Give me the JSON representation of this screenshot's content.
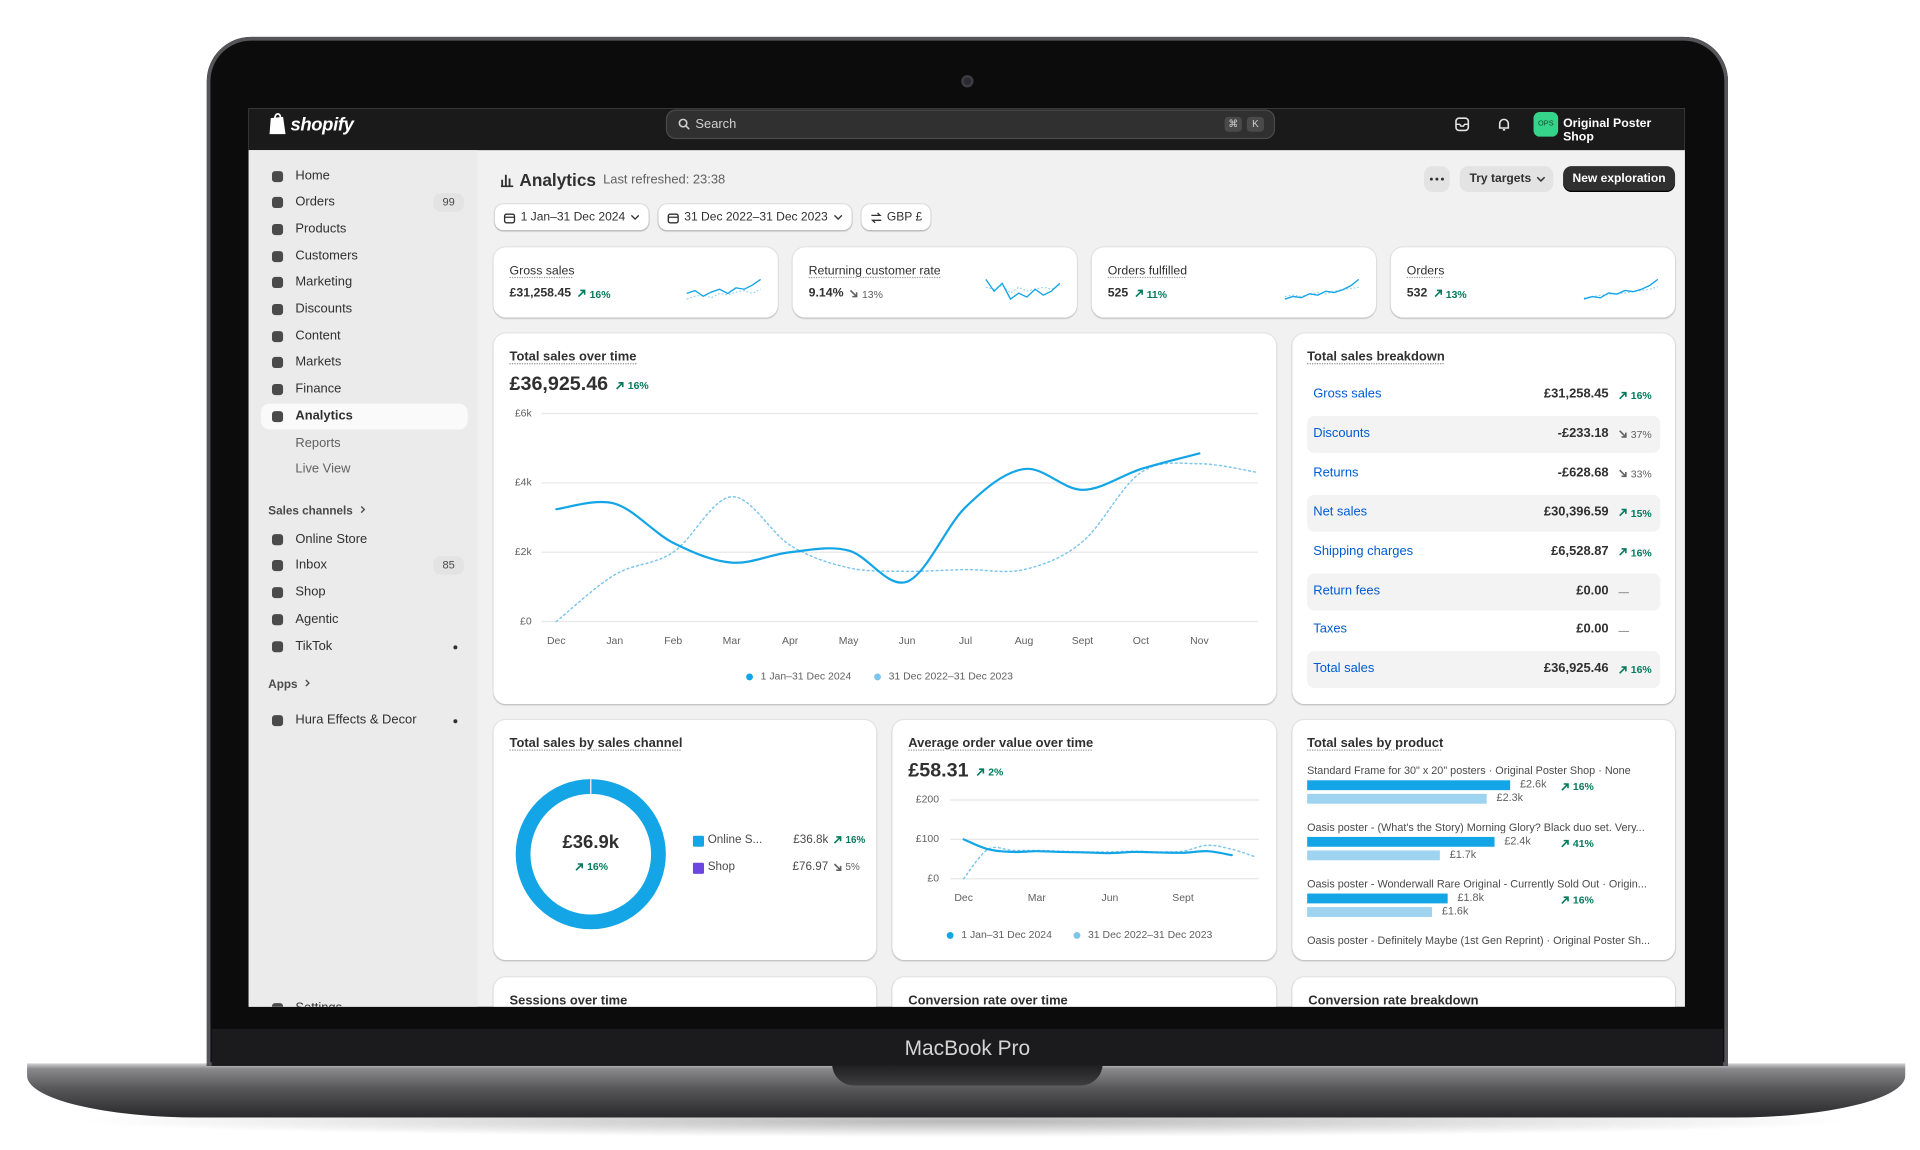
{
  "device": {
    "label": "MacBook Pro"
  },
  "topbar": {
    "logo": "shopify",
    "search": "Search",
    "shortcut": [
      "⌘",
      "K"
    ],
    "store_badge": "OPS",
    "store_name": "Original Poster Shop"
  },
  "sidebar": {
    "items": [
      {
        "label": "Home"
      },
      {
        "label": "Orders",
        "badge": 99
      },
      {
        "label": "Products"
      },
      {
        "label": "Customers"
      },
      {
        "label": "Marketing"
      },
      {
        "label": "Discounts"
      },
      {
        "label": "Content"
      },
      {
        "label": "Markets"
      },
      {
        "label": "Finance"
      },
      {
        "label": "Analytics",
        "active": true
      },
      {
        "label": "Reports",
        "sub": true
      },
      {
        "label": "Live View",
        "sub": true
      }
    ],
    "sales_channels": {
      "title": "Sales channels",
      "items": [
        {
          "label": "Online Store"
        },
        {
          "label": "Inbox",
          "badge": 85
        },
        {
          "label": "Shop"
        },
        {
          "label": "Agentic"
        },
        {
          "label": "TikTok",
          "dot": true
        }
      ]
    },
    "apps": {
      "title": "Apps",
      "items": [
        {
          "label": "Hura Effects & Decor",
          "dot": true
        }
      ]
    },
    "settings": "Settings"
  },
  "header": {
    "title": "Analytics",
    "refreshed": "Last refreshed: 23:38",
    "buttons": [
      "Try targets",
      "New exploration"
    ]
  },
  "filters": [
    "1 Jan–31 Dec 2024",
    "31 Dec 2022–31 Dec 2023",
    "GBP £"
  ],
  "kpis": [
    {
      "title": "Gross sales",
      "value": "£31,258.45",
      "change": "16%",
      "trend": "up",
      "spark": {
        "current": [
          30,
          32,
          28,
          31,
          33,
          30,
          34,
          33,
          36,
          40
        ],
        "previous": [
          26,
          28,
          29,
          27,
          30,
          29,
          31,
          32,
          30,
          33
        ]
      }
    },
    {
      "title": "Returning customer rate",
      "value": "9.14%",
      "change": "13%",
      "trend": "down",
      "spark": {
        "current": [
          40,
          34,
          38,
          30,
          33,
          31,
          35,
          32,
          34,
          38
        ],
        "previous": [
          36,
          35,
          37,
          33,
          36,
          34,
          35,
          36,
          35,
          37
        ]
      }
    },
    {
      "title": "Orders fulfilled",
      "value": "525",
      "change": "11%",
      "trend": "up",
      "spark": {
        "current": [
          20,
          22,
          21,
          24,
          23,
          26,
          25,
          27,
          30,
          35
        ],
        "previous": [
          22,
          23,
          22,
          24,
          25,
          24,
          26,
          27,
          28,
          29
        ]
      }
    },
    {
      "title": "Orders",
      "value": "532",
      "change": "13%",
      "trend": "up",
      "spark": {
        "current": [
          20,
          22,
          21,
          25,
          24,
          27,
          26,
          28,
          31,
          36
        ],
        "previous": [
          21,
          22,
          23,
          24,
          24,
          25,
          26,
          27,
          28,
          30
        ]
      }
    }
  ],
  "total_sales_chart": {
    "type": "line",
    "title": "Total sales over time",
    "value": "£36,925.46",
    "change": "16%",
    "trend": "up",
    "categories": [
      "Dec",
      "Jan",
      "Feb",
      "Mar",
      "Apr",
      "May",
      "Jun",
      "Jul",
      "Aug",
      "Sept",
      "Oct",
      "Nov",
      null
    ],
    "series": [
      {
        "name": "1 Jan–31 Dec 2024",
        "color": "#13a5e6",
        "values": [
          3240,
          3400,
          2270,
          1700,
          2000,
          2050,
          1150,
          3300,
          4400,
          3800,
          4400,
          4850,
          null
        ]
      },
      {
        "name": "31 Dec 2022–31 Dec 2023",
        "color": "#7cc6ee",
        "dashed": true,
        "values": [
          0,
          1350,
          2000,
          3600,
          2200,
          1550,
          1450,
          1500,
          1500,
          2300,
          4300,
          4550,
          4300
        ]
      }
    ],
    "ylim": [
      0,
      6000
    ],
    "yticks": [
      {
        "value": 0,
        "label": "£0"
      },
      {
        "value": 2000,
        "label": "£2k"
      },
      {
        "value": 4000,
        "label": "£4k"
      },
      {
        "value": 6000,
        "label": "£6k"
      }
    ],
    "grid": true
  },
  "breakdown": {
    "title": "Total sales breakdown",
    "rows": [
      {
        "label": "Gross sales",
        "value": "£31,258.45",
        "change": "16%",
        "trend": "up"
      },
      {
        "label": "Discounts",
        "value": "-£233.18",
        "change": "37%",
        "trend": "down"
      },
      {
        "label": "Returns",
        "value": "-£628.68",
        "change": "33%",
        "trend": "down"
      },
      {
        "label": "Net sales",
        "value": "£30,396.59",
        "change": "15%",
        "trend": "up"
      },
      {
        "label": "Shipping charges",
        "value": "£6,528.87",
        "change": "16%",
        "trend": "up"
      },
      {
        "label": "Return fees",
        "value": "£0.00",
        "change": "—"
      },
      {
        "label": "Taxes",
        "value": "£0.00",
        "change": "—"
      },
      {
        "label": "Total sales",
        "value": "£36,925.46",
        "change": "16%",
        "trend": "up"
      }
    ]
  },
  "channel_chart": {
    "type": "donut",
    "title": "Total sales by sales channel",
    "center_value": "£36.9k",
    "center_change": "16%",
    "center_trend": "up",
    "categories": [
      "Online S...",
      "Shop"
    ],
    "colors": [
      "#13a5e6",
      "#6b46e0"
    ],
    "values": [
      36848.49,
      76.97
    ],
    "value_labels": [
      "£36.8k",
      "£76.97"
    ],
    "changes": [
      "16%",
      "5%"
    ],
    "trends": [
      "up",
      "down"
    ]
  },
  "aov_chart": {
    "type": "line",
    "title": "Average order value over time",
    "value": "£58.31",
    "change": "2%",
    "trend": "up",
    "categories": [
      "Dec",
      null,
      null,
      "Mar",
      null,
      null,
      "Jun",
      null,
      null,
      "Sept",
      null,
      null,
      null
    ],
    "series": [
      {
        "name": "1 Jan–31 Dec 2024",
        "color": "#13a5e6",
        "values": [
          100,
          75,
          68,
          70,
          68,
          67,
          65,
          68,
          67,
          66,
          70,
          60,
          null
        ]
      },
      {
        "name": "31 Dec 2022–31 Dec 2023",
        "color": "#7cc6ee",
        "dashed": true,
        "values": [
          0,
          75,
          72,
          72,
          70,
          68,
          68,
          70,
          68,
          70,
          85,
          75,
          55
        ]
      }
    ],
    "ylim": [
      0,
      200
    ],
    "yticks": [
      {
        "value": 0,
        "label": "£0"
      },
      {
        "value": 100,
        "label": "£100"
      },
      {
        "value": 200,
        "label": "£200"
      }
    ],
    "grid": true
  },
  "product_chart": {
    "type": "bar",
    "title": "Total sales by product",
    "products": [
      {
        "name": "Standard Frame for 30\" x 20\" posters · Original Poster Shop · None",
        "current": 2600,
        "current_label": "£2.6k",
        "previous": 2300,
        "previous_label": "£2.3k",
        "change": "16%",
        "trend": "up"
      },
      {
        "name": "Oasis poster - (What's the Story) Morning Glory? Black duo set. Very...",
        "current": 2400,
        "current_label": "£2.4k",
        "previous": 1700,
        "previous_label": "£1.7k",
        "change": "41%",
        "trend": "up"
      },
      {
        "name": "Oasis poster - Wonderwall Rare Original - Currently Sold Out · Origin...",
        "current": 1800,
        "current_label": "£1.8k",
        "previous": 1600,
        "previous_label": "£1.6k",
        "change": "16%",
        "trend": "up"
      },
      {
        "name": "Oasis poster - Definitely Maybe (1st Gen Reprint) · Original Poster Sh..."
      }
    ],
    "colors": {
      "current": "#13a5e6",
      "previous": "#9fd4f1"
    }
  },
  "lower_cards": [
    "Sessions over time",
    "Conversion rate over time",
    "Conversion rate breakdown"
  ]
}
